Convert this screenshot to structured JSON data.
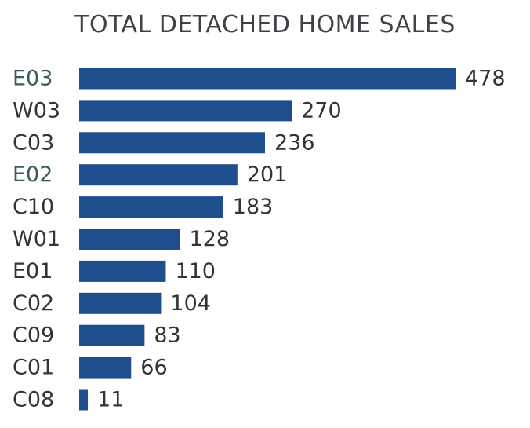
{
  "chart_data": {
    "type": "bar",
    "orientation": "horizontal",
    "title": "TOTAL DETACHED HOME SALES",
    "categories": [
      "E03",
      "W03",
      "C03",
      "E02",
      "C10",
      "W01",
      "E01",
      "C02",
      "C09",
      "C01",
      "C08"
    ],
    "values": [
      478,
      270,
      236,
      201,
      183,
      128,
      110,
      104,
      83,
      66,
      11
    ],
    "highlighted_categories": [
      "E03",
      "E02"
    ],
    "xlabel": "",
    "ylabel": "",
    "grid": false,
    "legend": "none",
    "colors": {
      "bar": "#1f4e8c",
      "label": "#333333",
      "highlight_label": "#3a5a5c",
      "title": "#3f4246"
    }
  }
}
